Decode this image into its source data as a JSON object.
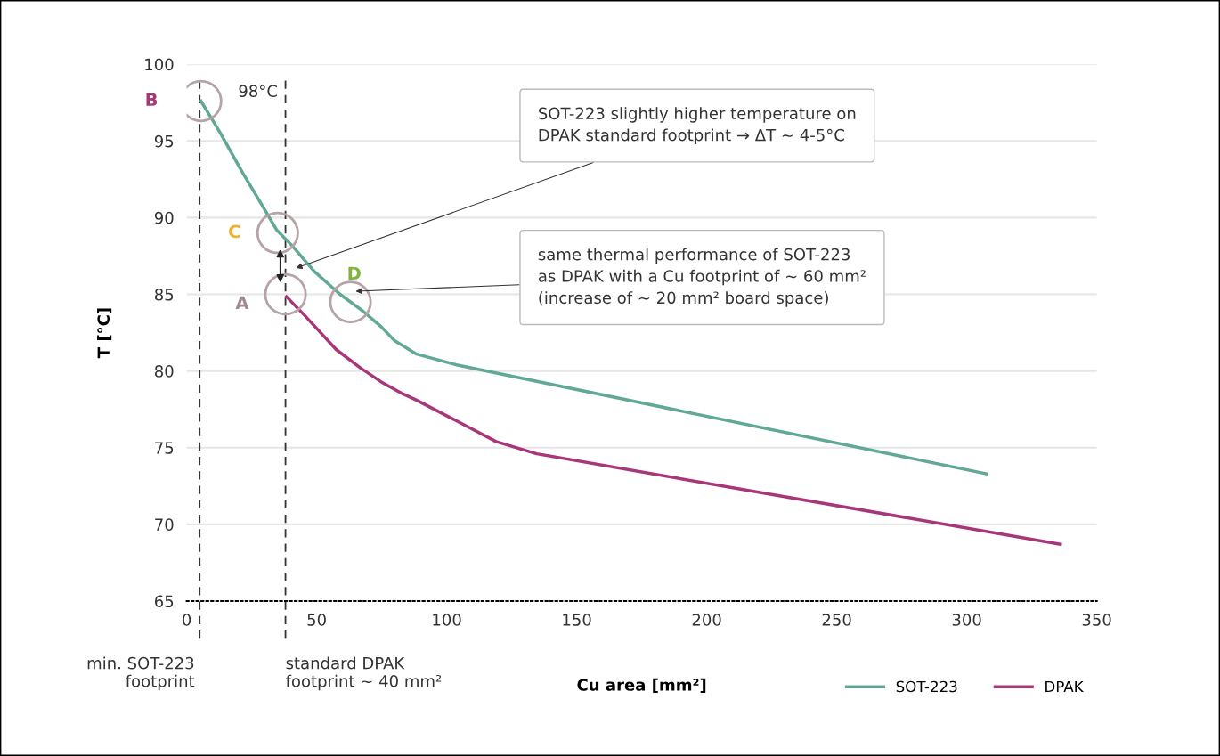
{
  "chart_data": {
    "type": "line",
    "xlabel": "Cu area [mm²]",
    "ylabel": "T [°C]",
    "xlim": [
      0,
      350
    ],
    "xticks": [
      0,
      50,
      100,
      150,
      200,
      250,
      300,
      350
    ],
    "ylim": [
      65,
      100
    ],
    "yticks": [
      65,
      70,
      75,
      80,
      85,
      90,
      95,
      100
    ],
    "grid": "y",
    "legend": "bottom right",
    "marker": "none",
    "line_style": "solid",
    "series": [
      {
        "name": "SOT-223",
        "color": "#62a896",
        "x": [
          5.5,
          13,
          21.6,
          30.1,
          34.6,
          40.4,
          49,
          59,
          67.8,
          74.7,
          79.8,
          88.4,
          103.8,
          307.5
        ],
        "values": [
          97.6,
          95.5,
          92.9,
          90.5,
          89.2,
          88.2,
          86.5,
          85.0,
          83.9,
          82.9,
          82.0,
          81.1,
          80.4,
          73.3
        ]
      },
      {
        "name": "DPAK",
        "color": "#a8377a",
        "x": [
          38.4,
          45.5,
          57.5,
          66.8,
          74.7,
          83.2,
          88.4,
          105.5,
          119,
          134.6,
          336
        ],
        "values": [
          84.85,
          83.6,
          81.4,
          80.2,
          79.3,
          78.5,
          78.1,
          76.6,
          75.4,
          74.6,
          68.7
        ]
      }
    ],
    "ref_lines": [
      {
        "axis": "x",
        "value": 5,
        "label": "min. SOT-223\nfootprint",
        "color": "#333333",
        "line_style": "dashed"
      },
      {
        "axis": "x",
        "value": 38,
        "label": "standard DPAK\nfootprint ~ 40 mm²",
        "color": "#333333",
        "line_style": "dashed"
      }
    ],
    "annotations": [
      {
        "text": "B",
        "x": 5.5,
        "y": 97.6
      },
      {
        "text": "C",
        "x": 35,
        "y": 89
      },
      {
        "text": "A",
        "x": 38,
        "y": 85
      },
      {
        "text": "D",
        "x": 63,
        "y": 84.5
      },
      {
        "text": "98°C",
        "x": 5.5,
        "y": 97.6
      },
      "SOT-223 slightly higher temperature on\nDPAK standard footprint → ΔT ~ 4-5°C",
      "same thermal performance of SOT-223\nas DPAK with a Cu footprint of ~ 60 mm²\n(increase of ~ 20 mm² board space)"
    ]
  }
}
